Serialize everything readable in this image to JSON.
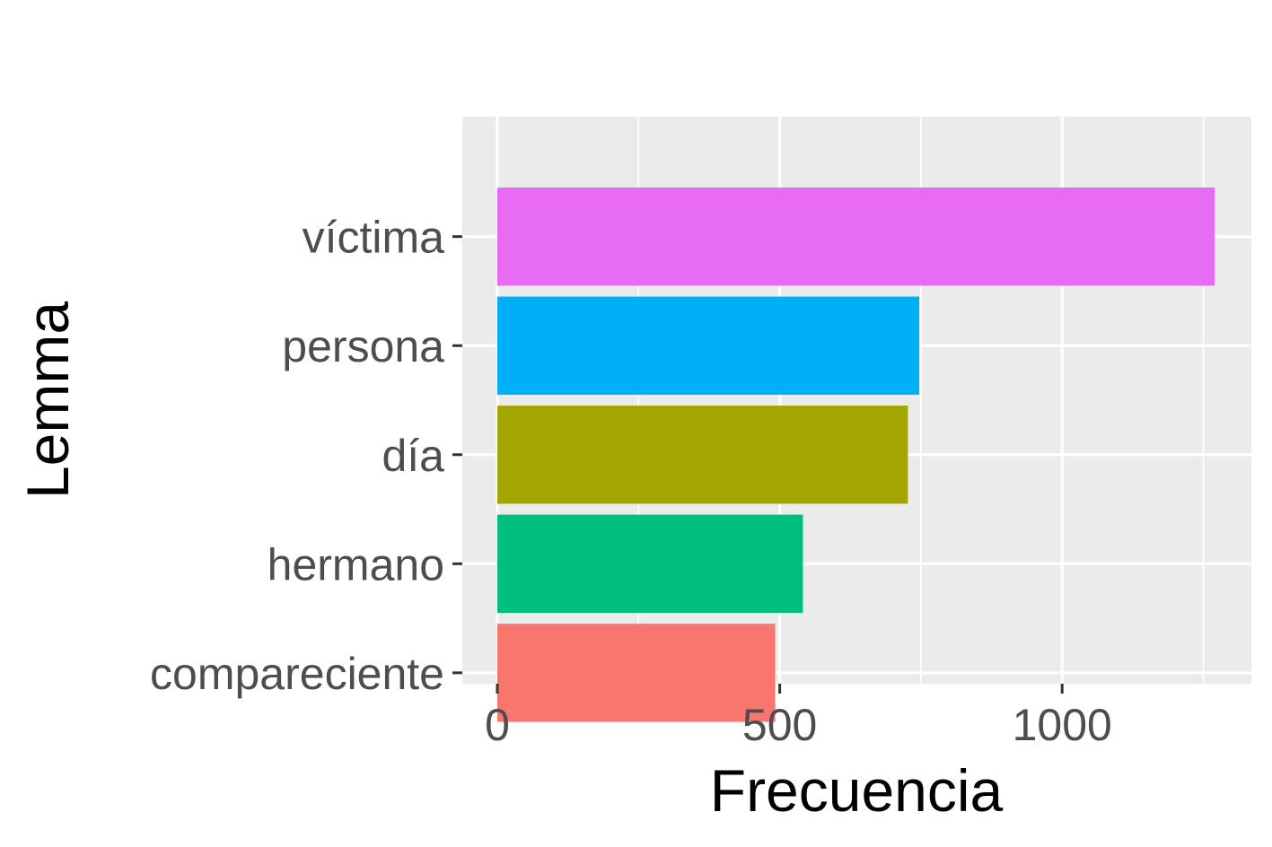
{
  "chart_data": {
    "type": "bar",
    "orientation": "horizontal",
    "categories": [
      "víctima",
      "persona",
      "día",
      "hermano",
      "compareciente"
    ],
    "values": [
      1270,
      747,
      727,
      541,
      492
    ],
    "colors": [
      "#E76BF3",
      "#00B0F6",
      "#A3A500",
      "#00BF7D",
      "#F8766D"
    ],
    "xlabel": "Frecuencia",
    "ylabel": "Lemma",
    "xlim": [
      -62,
      1335
    ],
    "xticks": [
      0,
      500,
      1000
    ],
    "xtick_labels": [
      "0",
      "500",
      "1000"
    ],
    "grid": true,
    "legend": "none",
    "panel_background": "#EBEBEB"
  }
}
